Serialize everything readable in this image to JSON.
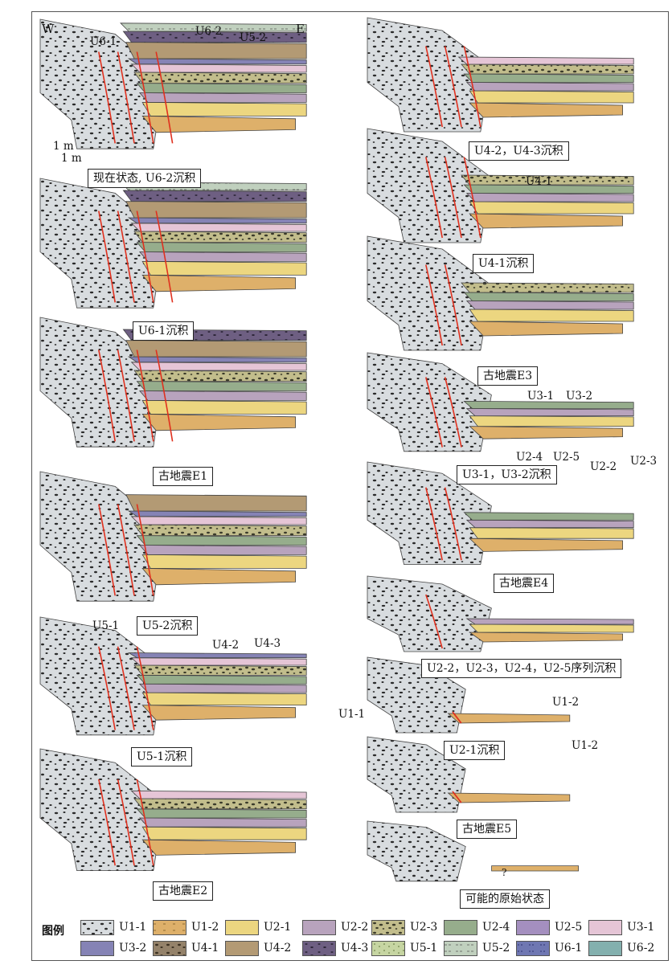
{
  "direction": {
    "west": "W",
    "east": "E"
  },
  "scale": {
    "vertical": "1 m",
    "horizontal": "1 m"
  },
  "captions": [
    "现在状态, U6-2沉积",
    "U6-1沉积",
    "古地震E1",
    "U5-2沉积",
    "U5-1沉积",
    "古地震E2",
    "U4-2，U4-3沉积",
    "U4-1沉积",
    "古地震E3",
    "U3-1，U3-2沉积",
    "古地震E4",
    "U2-2，U2-3，U2-4，U2-5序列沉积",
    "U2-1沉积",
    "古地震E5",
    "可能的原始状态"
  ],
  "annotations": {
    "p1": [
      "U6-1",
      "U6-2",
      "U5-2"
    ],
    "p5": [
      "U5-1",
      "U4-2",
      "U4-3"
    ],
    "p8": [
      "U4-1"
    ],
    "p10": [
      "U3-1",
      "U3-2",
      "U2-4",
      "U2-5",
      "U2-2",
      "U2-3"
    ],
    "p13": [
      "U1-1",
      "U1-2",
      "U1-2"
    ],
    "p15": [
      "?"
    ]
  },
  "legend": {
    "title": "图例",
    "items": [
      {
        "name": "U1-1",
        "color": "#d8dcdf"
      },
      {
        "name": "U1-2",
        "color": "#deb06a"
      },
      {
        "name": "U2-1",
        "color": "#ecd680"
      },
      {
        "name": "U2-2",
        "color": "#b8a3bd"
      },
      {
        "name": "U2-3",
        "color": "#c2bd8c"
      },
      {
        "name": "U2-4",
        "color": "#96ad8c"
      },
      {
        "name": "U2-5",
        "color": "#a48fbf"
      },
      {
        "name": "U3-1",
        "color": "#e5c5d6"
      },
      {
        "name": "U3-2",
        "color": "#8583b5"
      },
      {
        "name": "U4-1",
        "color": "#94826a"
      },
      {
        "name": "U4-2",
        "color": "#b39a74"
      },
      {
        "name": "U4-3",
        "color": "#6e5f82"
      },
      {
        "name": "U5-1",
        "color": "#c6d5a2"
      },
      {
        "name": "U5-2",
        "color": "#c0d0be"
      },
      {
        "name": "U6-1",
        "color": "#6f77b2"
      },
      {
        "name": "U6-2",
        "color": "#83b0ae"
      }
    ]
  }
}
